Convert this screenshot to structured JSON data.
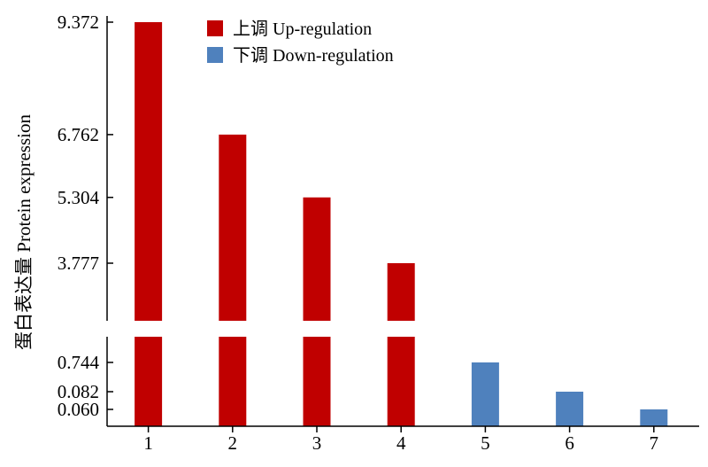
{
  "chart_data": {
    "type": "bar",
    "ylabel": "蛋白表达量 Protein expression",
    "xlabel": "",
    "categories": [
      "1",
      "2",
      "3",
      "4",
      "5",
      "6",
      "7"
    ],
    "values": [
      9.372,
      6.762,
      5.304,
      3.777,
      0.744,
      0.082,
      0.06
    ],
    "groups": [
      "up",
      "up",
      "up",
      "up",
      "down",
      "down",
      "down"
    ],
    "colors": {
      "up": "#c00000",
      "down": "#4f81bd"
    },
    "legend": [
      {
        "key": "up",
        "label": "上调 Up-regulation"
      },
      {
        "key": "down",
        "label": "下调 Down-regulation"
      }
    ],
    "legend_position": "top",
    "y_ticks_upper": [
      "9.372",
      "6.762",
      "5.304",
      "3.777"
    ],
    "y_ticks_lower": [
      "0.744",
      "0.082",
      "0.060"
    ],
    "axis_break": true,
    "grid": false
  }
}
